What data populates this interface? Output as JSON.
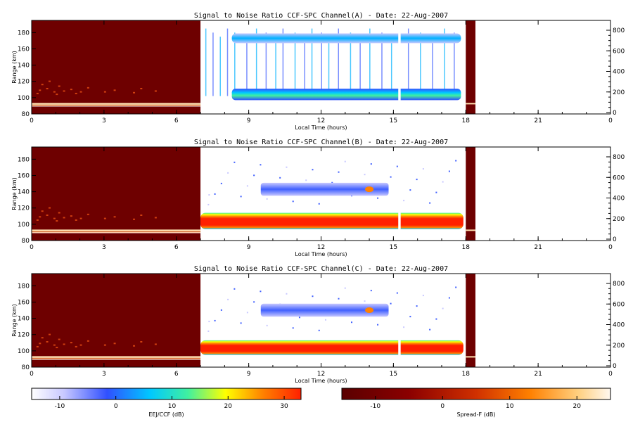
{
  "chart_data": [
    {
      "type": "heatmap",
      "title": "Signal to Noise Ratio CCF-SPC Channel(A) - Date: 22-Aug-2007",
      "xlabel": "Local Time (hours)",
      "ylabel": "Range (km)",
      "xlim": [
        0,
        24
      ],
      "ylim": [
        80,
        195
      ],
      "x_ticks": [
        "0",
        "3",
        "6",
        "9",
        "12",
        "15",
        "18",
        "21",
        "0"
      ],
      "y_ticks": [
        "80",
        "100",
        "120",
        "140",
        "160",
        "180"
      ],
      "right_ticks": [
        "0",
        "200",
        "400",
        "600",
        "800"
      ],
      "spread_f_hours": [
        0,
        7
      ],
      "eej_ccf_hours": [
        7,
        18
      ],
      "gap_hours": [
        15.2,
        15.3
      ],
      "layers": [
        {
          "name": "upper",
          "hours": [
            8.3,
            17.8
          ],
          "center_km": 173,
          "thickness_km": 12,
          "peak_db": -3
        },
        {
          "name": "lower",
          "hours": [
            8.3,
            17.8
          ],
          "center_km": 104,
          "thickness_km": 14,
          "peak_db": 8
        }
      ]
    },
    {
      "type": "heatmap",
      "title": "Signal to Noise Ratio CCF-SPC Channel(B) - Date: 22-Aug-2007",
      "xlabel": "Local Time (hours)",
      "ylabel": "Range (km)",
      "xlim": [
        0,
        24
      ],
      "ylim": [
        80,
        195
      ],
      "x_ticks": [
        "0",
        "3",
        "6",
        "9",
        "12",
        "15",
        "18",
        "21",
        "0"
      ],
      "y_ticks": [
        "80",
        "100",
        "120",
        "140",
        "160",
        "180"
      ],
      "right_ticks": [
        "0",
        "200",
        "400",
        "600",
        "800"
      ],
      "spread_f_hours": [
        0,
        7
      ],
      "eej_ccf_hours": [
        7,
        18
      ],
      "gap_hours": [
        15.2,
        15.3
      ],
      "layers": [
        {
          "name": "upper",
          "hours": [
            9.5,
            14.8
          ],
          "center_km": 143,
          "thickness_km": 16,
          "peak_db": 22
        },
        {
          "name": "lower",
          "hours": [
            7.0,
            17.9
          ],
          "center_km": 104,
          "thickness_km": 20,
          "peak_db": 30
        }
      ]
    },
    {
      "type": "heatmap",
      "title": "Signal to Noise Ratio CCF-SPC Channel(C) - Date: 22-Aug-2007",
      "xlabel": "Local Time (hours)",
      "ylabel": "Range (km)",
      "xlim": [
        0,
        24
      ],
      "ylim": [
        80,
        195
      ],
      "x_ticks": [
        "0",
        "3",
        "6",
        "9",
        "12",
        "15",
        "18",
        "21",
        "0"
      ],
      "y_ticks": [
        "80",
        "100",
        "120",
        "140",
        "160",
        "180"
      ],
      "right_ticks": [
        "0",
        "200",
        "400",
        "600",
        "800"
      ],
      "spread_f_hours": [
        0,
        7
      ],
      "eej_ccf_hours": [
        7,
        18
      ],
      "gap_hours": [
        15.2,
        15.3
      ],
      "layers": [
        {
          "name": "upper",
          "hours": [
            9.5,
            14.8
          ],
          "center_km": 150,
          "thickness_km": 16,
          "peak_db": 18
        },
        {
          "name": "lower",
          "hours": [
            7.0,
            17.9
          ],
          "center_km": 104,
          "thickness_km": 18,
          "peak_db": 28
        }
      ]
    }
  ],
  "colorbars": [
    {
      "label": "EEJ/CCF (dB)",
      "ticks": [
        "-10",
        "0",
        "10",
        "20",
        "30"
      ],
      "range": [
        -15,
        33
      ]
    },
    {
      "label": "Spread-F (dB)",
      "ticks": [
        "-10",
        "0",
        "10",
        "20"
      ],
      "range": [
        -15,
        25
      ]
    }
  ],
  "colors": {
    "spread_f_background": "#6e0000",
    "eej_ccf_scale": [
      "#ffffff",
      "#d0d0ff",
      "#4060ff",
      "#00c8ff",
      "#40f0a0",
      "#ffff00",
      "#ff8000",
      "#ff2000"
    ],
    "spread_f_scale": [
      "#5a0000",
      "#8b0000",
      "#d03000",
      "#ff8000",
      "#ffd080",
      "#fff8f0"
    ]
  }
}
